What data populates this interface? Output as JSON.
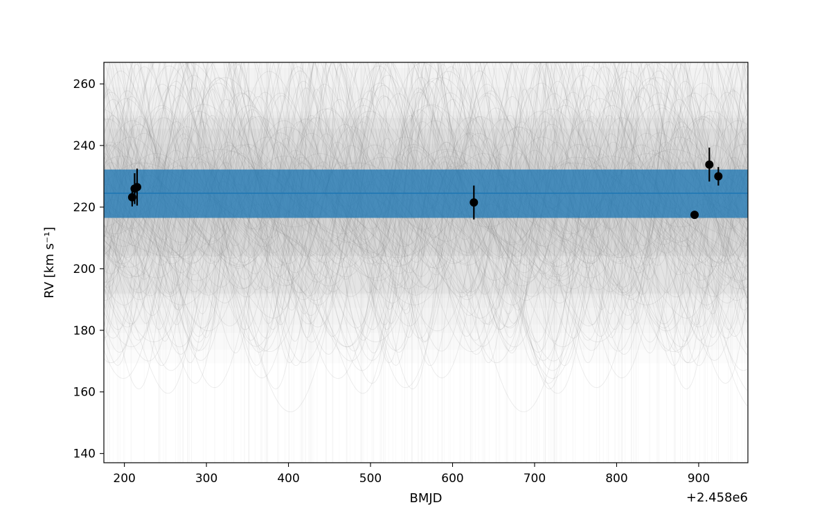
{
  "chart_data": {
    "type": "scatter",
    "title": "",
    "xlabel": "BMJD",
    "ylabel": "RV [km s⁻¹]",
    "x_offset_label": "+2.458e6",
    "xlim": [
      2458175,
      2458960
    ],
    "ylim": [
      137,
      267
    ],
    "xticks": [
      2458200,
      2458300,
      2458400,
      2458500,
      2458600,
      2458700,
      2458800,
      2458900
    ],
    "xtick_labels": [
      "200",
      "300",
      "400",
      "500",
      "600",
      "700",
      "800",
      "900"
    ],
    "yticks": [
      140,
      160,
      180,
      200,
      220,
      240,
      260
    ],
    "ytick_labels": [
      "140",
      "160",
      "180",
      "200",
      "220",
      "240",
      "260"
    ],
    "grid": false,
    "legend": "none",
    "points": [
      {
        "x": 2458209.5,
        "y": 223.2,
        "err": 3.0
      },
      {
        "x": 2458212.5,
        "y": 226.0,
        "err": 5.0
      },
      {
        "x": 2458215.5,
        "y": 226.5,
        "err": 6.0
      },
      {
        "x": 2458626.0,
        "y": 221.5,
        "err": 5.5
      },
      {
        "x": 2458895.0,
        "y": 217.5,
        "err": 1.2
      },
      {
        "x": 2458913.0,
        "y": 233.8,
        "err": 5.5
      },
      {
        "x": 2458924.0,
        "y": 230.0,
        "err": 3.0
      }
    ],
    "model_band": {
      "center": 224.5,
      "lower": 216.5,
      "upper": 232.2
    },
    "posterior_sample_orbits": 120,
    "colors": {
      "points": "#000000",
      "band": "#1f77b4",
      "band_line": "#1f77b4",
      "samples": "#808080"
    }
  }
}
